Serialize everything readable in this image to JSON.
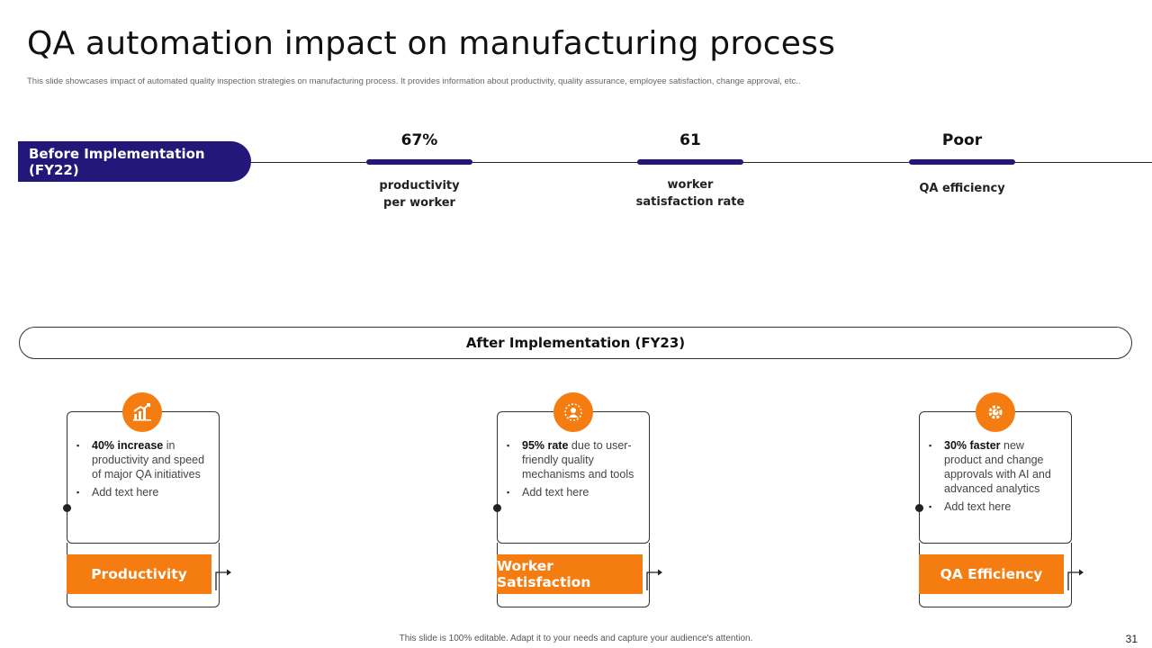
{
  "title": "QA automation impact on manufacturing process",
  "subtitle": "This slide showcases impact of automated quality inspection strategies on manufacturing process. It provides information about productivity, quality assurance, employee satisfaction, change approval, etc..",
  "before": {
    "label": "Before Implementation (FY22)",
    "metrics": [
      {
        "value": "67%",
        "label_line1": "productivity",
        "label_line2": "per worker"
      },
      {
        "value": "61",
        "label_line1": "worker",
        "label_line2": "satisfaction  rate"
      },
      {
        "value": "Poor",
        "label_line1": "QA efficiency",
        "label_line2": ""
      }
    ]
  },
  "after": {
    "label": "After Implementation (FY23)",
    "cards": [
      {
        "icon": "growth-chart-icon",
        "bold": "40%  increase",
        "text": " in productivity  and speed  of major QA initiatives",
        "extra": "Add text here",
        "label": "Productivity"
      },
      {
        "icon": "team-satisfaction-icon",
        "bold": "95%  rate",
        "text": " due to user-friendly  quality mechanisms and tools",
        "extra": "Add text here",
        "label": "Worker Satisfaction"
      },
      {
        "icon": "gear-efficiency-icon",
        "bold": "30%  faster",
        "text": " new product and change approvals  with AI and advanced  analytics",
        "extra": "Add text here",
        "label": "QA Efficiency"
      }
    ]
  },
  "footer": "This slide is 100% editable.  Adapt it to your needs and capture your audience's attention.",
  "page_number": "31",
  "colors": {
    "navy": "#23187a",
    "orange": "#f47c10"
  }
}
